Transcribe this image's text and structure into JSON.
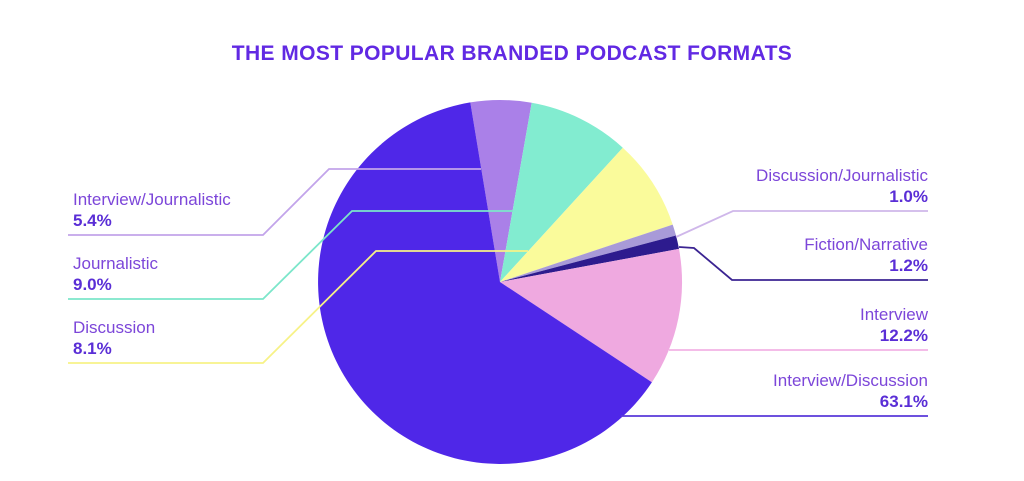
{
  "title": "THE MOST POPULAR BRANDED PODCAST FORMATS",
  "colors": {
    "title": "#6129e3",
    "label_name": "#7c46d9",
    "label_value": "#5a2ed6",
    "background": "#ffffff"
  },
  "chart_data": {
    "type": "pie",
    "title": "THE MOST POPULAR BRANDED PODCAST FORMATS",
    "start_angle_deg_from_12": -9.4,
    "direction": "clockwise",
    "legend_position": "callout-labels",
    "slices": [
      {
        "label": "Interview/Journalistic",
        "value": 5.4,
        "value_label": "5.4%",
        "color": "#aa80e8",
        "leader_color": "#c2a4ea",
        "side": "left"
      },
      {
        "label": "Journalistic",
        "value": 9.0,
        "value_label": "9.0%",
        "color": "#82ecd0",
        "leader_color": "#7ce6ca",
        "side": "left"
      },
      {
        "label": "Discussion",
        "value": 8.1,
        "value_label": "8.1%",
        "color": "#fafb9b",
        "leader_color": "#f7f287",
        "side": "left"
      },
      {
        "label": "Discussion/Journalistic",
        "value": 1.0,
        "value_label": "1.0%",
        "color": "#a89ad8",
        "leader_color": "#cfb7ea",
        "side": "right"
      },
      {
        "label": "Fiction/Narrative",
        "value": 1.2,
        "value_label": "1.2%",
        "color": "#2d1b8e",
        "leader_color": "#3b2492",
        "side": "right"
      },
      {
        "label": "Interview",
        "value": 12.2,
        "value_label": "12.2%",
        "color": "#efa9e0",
        "leader_color": "#f2b3e4",
        "side": "right"
      },
      {
        "label": "Interview/Discussion",
        "value": 63.1,
        "value_label": "63.1%",
        "color": "#4f27e8",
        "leader_color": "#5838da",
        "side": "right"
      }
    ]
  }
}
